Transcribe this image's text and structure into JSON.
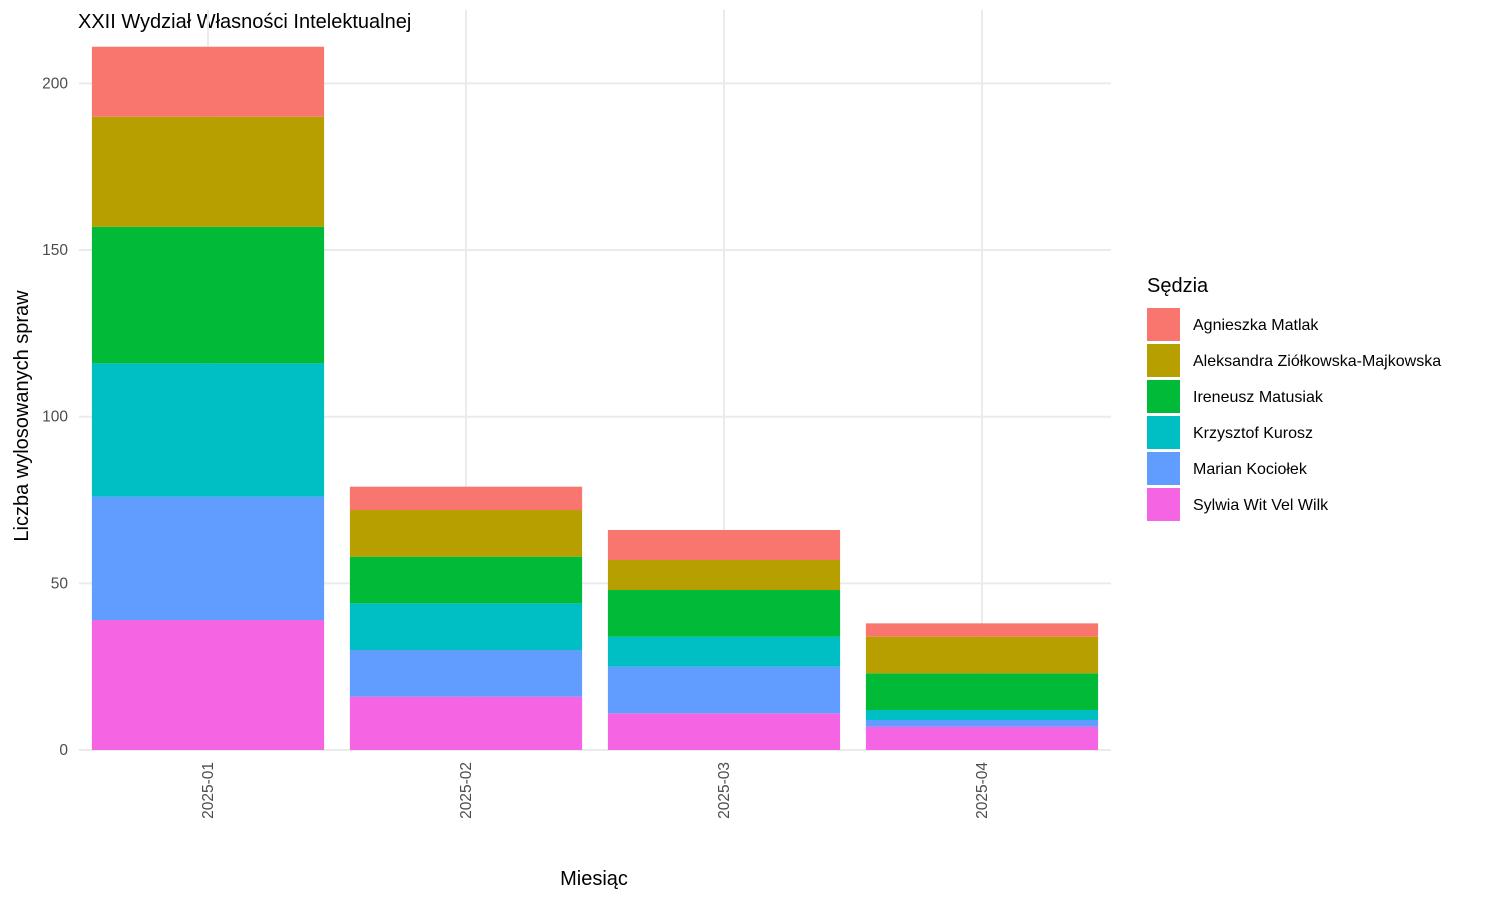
{
  "chart_data": {
    "type": "bar",
    "stacked": true,
    "title": "XXII Wydział Własności Intelektualnej",
    "xlabel": "Miesiąc",
    "ylabel": "Liczba wylosowanych spraw",
    "categories": [
      "2025-01",
      "2025-02",
      "2025-03",
      "2025-04"
    ],
    "ylim": [
      0,
      212
    ],
    "yticks": [
      0,
      50,
      100,
      150,
      200
    ],
    "grid": true,
    "legend": {
      "title": "Sędzia",
      "placement": "right"
    },
    "series": [
      {
        "name": "Agnieszka Matlak",
        "color": "#F8766D",
        "values": [
          21,
          7,
          9,
          4
        ]
      },
      {
        "name": "Aleksandra Ziółkowska-Majkowska",
        "color": "#B79F00",
        "values": [
          33,
          14,
          9,
          11
        ]
      },
      {
        "name": "Ireneusz Matusiak",
        "color": "#00BA38",
        "values": [
          41,
          14,
          14,
          11
        ]
      },
      {
        "name": "Krzysztof Kurosz",
        "color": "#00BFC4",
        "values": [
          40,
          14,
          9,
          3
        ]
      },
      {
        "name": "Marian Kociołek",
        "color": "#619CFF",
        "values": [
          37,
          14,
          14,
          2
        ]
      },
      {
        "name": "Sylwia Wit Vel Wilk",
        "color": "#F564E3",
        "values": [
          39,
          16,
          11,
          7
        ]
      }
    ]
  }
}
